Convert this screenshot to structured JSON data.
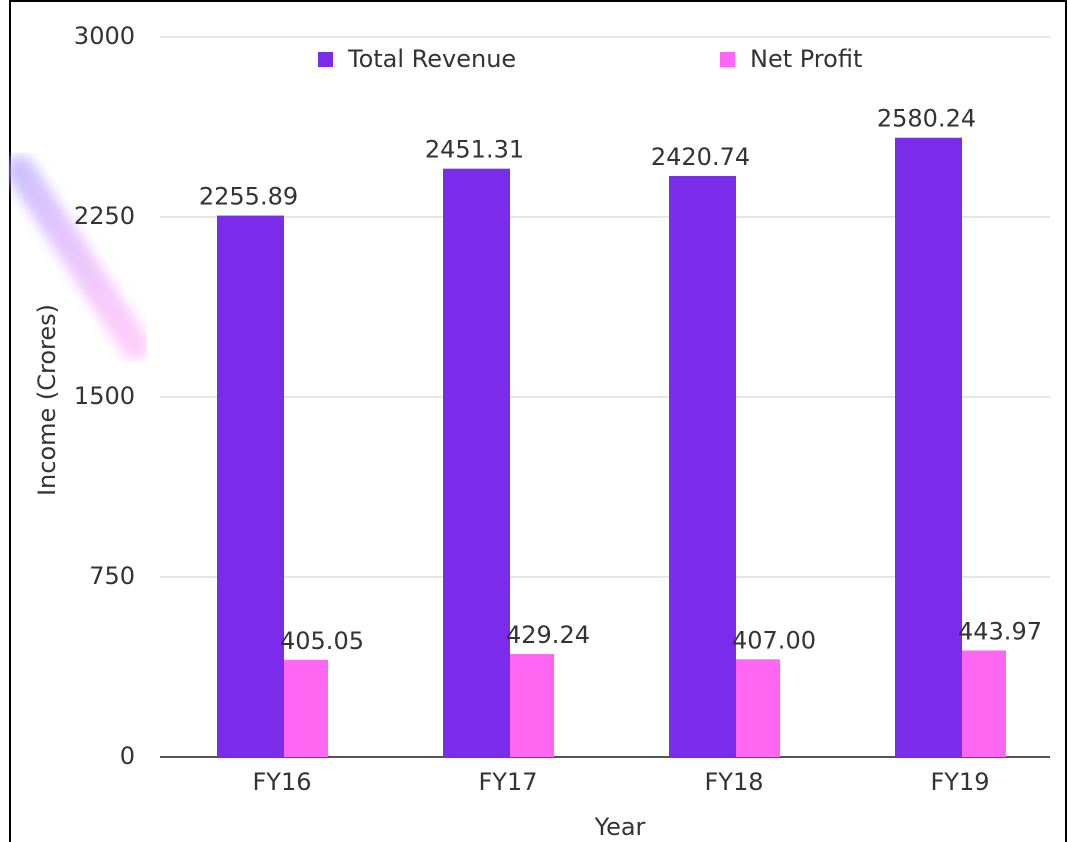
{
  "chart_data": {
    "type": "bar",
    "categories": [
      "FY16",
      "FY17",
      "FY18",
      "FY19"
    ],
    "series": [
      {
        "name": "Total Revenue",
        "color": "#7b2cea",
        "values": [
          2255.89,
          2451.31,
          2420.74,
          2580.24
        ]
      },
      {
        "name": "Net Profit",
        "color": "#ff66f2",
        "values": [
          405.05,
          429.24,
          407.0,
          443.97
        ],
        "value_labels": [
          "405.05",
          "429.24",
          "407.00",
          "443.97"
        ]
      }
    ],
    "xlabel": "Year",
    "ylabel": "Income (Crores)",
    "ylim": [
      0,
      3000
    ],
    "yticks": [
      0,
      750,
      1500,
      2250,
      3000
    ],
    "grid": true,
    "legend": "top"
  }
}
